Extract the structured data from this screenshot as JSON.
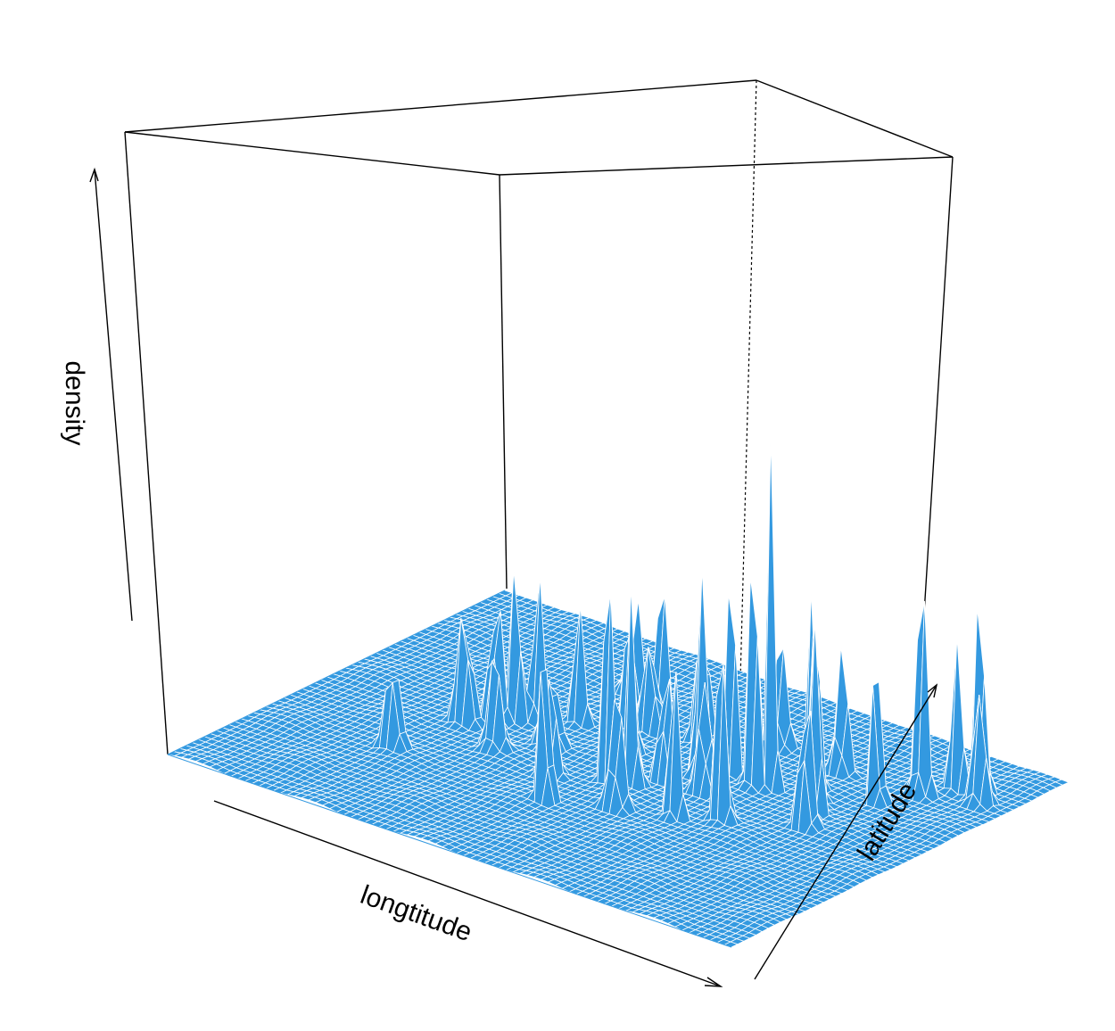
{
  "chart_data": {
    "type": "surface",
    "title": "",
    "xlabel": "longtitude",
    "ylabel": "latitude",
    "zlabel": "density",
    "surface_color": "#3399e0",
    "mesh_color": "#ffffff",
    "box_color": "#000000",
    "grid": {
      "nx": 80,
      "ny": 55
    },
    "zlim": [
      0,
      1
    ],
    "peaks": [
      {
        "x": 0.22,
        "y": 0.3,
        "h": 0.16,
        "w": 0.01
      },
      {
        "x": 0.24,
        "y": 0.48,
        "h": 0.2,
        "w": 0.01
      },
      {
        "x": 0.27,
        "y": 0.52,
        "h": 0.28,
        "w": 0.008
      },
      {
        "x": 0.29,
        "y": 0.55,
        "h": 0.26,
        "w": 0.008
      },
      {
        "x": 0.31,
        "y": 0.58,
        "h": 0.22,
        "w": 0.008
      },
      {
        "x": 0.33,
        "y": 0.42,
        "h": 0.14,
        "w": 0.01
      },
      {
        "x": 0.36,
        "y": 0.62,
        "h": 0.18,
        "w": 0.008
      },
      {
        "x": 0.4,
        "y": 0.72,
        "h": 0.24,
        "w": 0.008
      },
      {
        "x": 0.42,
        "y": 0.76,
        "h": 0.22,
        "w": 0.008
      },
      {
        "x": 0.45,
        "y": 0.68,
        "h": 0.16,
        "w": 0.01
      },
      {
        "x": 0.49,
        "y": 0.3,
        "h": 0.62,
        "w": 0.006
      },
      {
        "x": 0.52,
        "y": 0.44,
        "h": 0.4,
        "w": 0.007
      },
      {
        "x": 0.55,
        "y": 0.46,
        "h": 0.38,
        "w": 0.007
      },
      {
        "x": 0.57,
        "y": 0.52,
        "h": 0.32,
        "w": 0.007
      },
      {
        "x": 0.6,
        "y": 0.58,
        "h": 0.3,
        "w": 0.008
      },
      {
        "x": 0.63,
        "y": 0.62,
        "h": 0.34,
        "w": 0.007
      },
      {
        "x": 0.64,
        "y": 0.52,
        "h": 0.24,
        "w": 0.008
      },
      {
        "x": 0.68,
        "y": 0.6,
        "h": 0.38,
        "w": 0.007
      },
      {
        "x": 0.7,
        "y": 0.62,
        "h": 0.52,
        "w": 0.006
      },
      {
        "x": 0.72,
        "y": 0.44,
        "h": 0.3,
        "w": 0.008
      },
      {
        "x": 0.75,
        "y": 0.66,
        "h": 0.38,
        "w": 0.007
      },
      {
        "x": 0.78,
        "y": 0.62,
        "h": 0.32,
        "w": 0.007
      },
      {
        "x": 0.8,
        "y": 0.58,
        "h": 0.28,
        "w": 0.008
      },
      {
        "x": 0.82,
        "y": 0.52,
        "h": 0.3,
        "w": 0.008
      },
      {
        "x": 0.66,
        "y": 0.4,
        "h": 0.22,
        "w": 0.008
      },
      {
        "x": 0.84,
        "y": 0.7,
        "h": 1.0,
        "w": 0.005
      },
      {
        "x": 0.87,
        "y": 0.78,
        "h": 0.34,
        "w": 0.008
      },
      {
        "x": 0.9,
        "y": 0.84,
        "h": 0.24,
        "w": 0.008
      },
      {
        "x": 0.93,
        "y": 0.86,
        "h": 0.56,
        "w": 0.006
      },
      {
        "x": 0.95,
        "y": 0.82,
        "h": 0.16,
        "w": 0.01
      },
      {
        "x": 0.58,
        "y": 0.36,
        "h": 0.18,
        "w": 0.01
      },
      {
        "x": 0.38,
        "y": 0.5,
        "h": 0.12,
        "w": 0.012
      },
      {
        "x": 0.47,
        "y": 0.58,
        "h": 0.2,
        "w": 0.009
      },
      {
        "x": 0.53,
        "y": 0.7,
        "h": 0.22,
        "w": 0.009
      },
      {
        "x": 0.74,
        "y": 0.76,
        "h": 0.2,
        "w": 0.009
      },
      {
        "x": 0.62,
        "y": 0.78,
        "h": 0.16,
        "w": 0.01
      },
      {
        "x": 0.35,
        "y": 0.8,
        "h": 0.1,
        "w": 0.012
      },
      {
        "x": 0.44,
        "y": 0.4,
        "h": 0.14,
        "w": 0.01
      }
    ]
  }
}
